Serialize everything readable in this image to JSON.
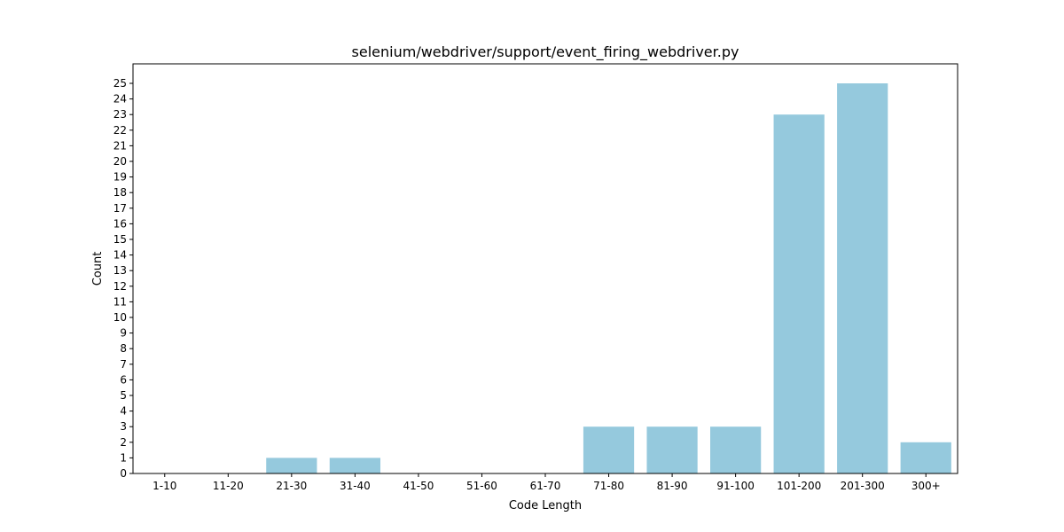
{
  "chart_data": {
    "type": "bar",
    "title": "selenium/webdriver/support/event_firing_webdriver.py",
    "xlabel": "Code Length",
    "ylabel": "Count",
    "categories": [
      "1-10",
      "11-20",
      "21-30",
      "31-40",
      "41-50",
      "51-60",
      "61-70",
      "71-80",
      "81-90",
      "91-100",
      "101-200",
      "201-300",
      "300+"
    ],
    "values": [
      0,
      0,
      1,
      1,
      0,
      0,
      0,
      3,
      3,
      3,
      23,
      25,
      2
    ],
    "ylim": [
      0,
      26.25
    ],
    "yticks": [
      0,
      1,
      2,
      3,
      4,
      5,
      6,
      7,
      8,
      9,
      10,
      11,
      12,
      13,
      14,
      15,
      16,
      17,
      18,
      19,
      20,
      21,
      22,
      23,
      24,
      25
    ],
    "bar_color": "#95c9dd",
    "grid": false,
    "legend": "none"
  }
}
